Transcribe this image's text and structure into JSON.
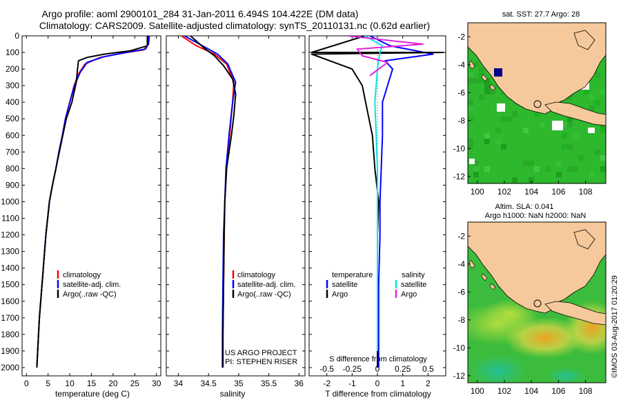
{
  "header": {
    "title_line1": "Argo profile: aoml 2900101_284 31-Jan-2011 6.494S 104.422E (DM data)",
    "title_line2": "Climatology: CARS2009. Satellite-adjusted climatology: synTS_20110131.nc (0.62d earlier)"
  },
  "credit": {
    "project": "US ARGO PROJECT",
    "pi": "PI: STEPHEN RISER",
    "stamp": "©IMOS 03-Aug-2017 01:20:29"
  },
  "colors": {
    "climatology": "#ff0000",
    "satellite": "#0000ff",
    "argo": "#000000",
    "sal_satellite": "#00e5e5",
    "sal_argo": "#e020e0",
    "land": "#f5c99b",
    "ocean": "#2db82d"
  },
  "chart_data": [
    {
      "id": "temperature",
      "type": "line",
      "xlabel": "temperature (deg C)",
      "ylabel": "",
      "xlim": [
        -1,
        31
      ],
      "ylim": [
        0,
        2050
      ],
      "yreversed": true,
      "xticks": [
        "0",
        "5",
        "10",
        "15",
        "20",
        "25",
        "30"
      ],
      "xtick_values": [
        0,
        5,
        10,
        15,
        20,
        25,
        30
      ],
      "yticks": [
        "0",
        "100",
        "200",
        "300",
        "400",
        "500",
        "600",
        "700",
        "800",
        "900",
        "1000",
        "1100",
        "1200",
        "1300",
        "1400",
        "1500",
        "1600",
        "1700",
        "1800",
        "1900",
        "2000"
      ],
      "ytick_values": [
        0,
        100,
        200,
        300,
        400,
        500,
        600,
        700,
        800,
        900,
        1000,
        1100,
        1200,
        1300,
        1400,
        1500,
        1600,
        1700,
        1800,
        1900,
        2000
      ],
      "legend": [
        "climatology",
        "satellite-adj. clim.",
        "Argo(..raw -QC)"
      ],
      "series": [
        {
          "name": "climatology",
          "color": "#ff0000",
          "x": [
            28.4,
            28.2,
            27,
            22,
            17,
            13.5,
            12,
            11,
            10,
            9,
            8.3,
            7.5,
            6.8,
            6,
            5.3,
            4.5,
            3.6,
            3,
            2.6,
            2.4
          ],
          "y": [
            0,
            50,
            85,
            105,
            130,
            170,
            230,
            300,
            400,
            500,
            600,
            700,
            800,
            900,
            1000,
            1200,
            1500,
            1700,
            1900,
            2000
          ]
        },
        {
          "name": "satellite-adj. clim.",
          "color": "#0000ff",
          "x": [
            28.2,
            28.1,
            27.5,
            23,
            18,
            14,
            12.4,
            11.1,
            10,
            9,
            8.3,
            7.5,
            6.8,
            6,
            5.3,
            4.5,
            3.6,
            3,
            2.6,
            2.4
          ],
          "y": [
            0,
            50,
            80,
            100,
            125,
            160,
            220,
            300,
            400,
            500,
            600,
            700,
            800,
            900,
            1000,
            1200,
            1500,
            1700,
            1900,
            2000
          ]
        },
        {
          "name": "Argo(..raw -QC)",
          "color": "#000000",
          "x": [
            27.9,
            27.9,
            24,
            18,
            14,
            12,
            11.8,
            11.5,
            10.5,
            9.2,
            8.4,
            7.6,
            6.8,
            6,
            5.3,
            4.5,
            3.6,
            3,
            2.6,
            2.4
          ],
          "y": [
            0,
            60,
            90,
            110,
            130,
            150,
            200,
            280,
            400,
            500,
            600,
            700,
            800,
            900,
            1000,
            1200,
            1500,
            1700,
            1900,
            2000
          ]
        }
      ]
    },
    {
      "id": "salinity",
      "type": "line",
      "xlabel": "salinity",
      "ylabel": "",
      "xlim": [
        33.8,
        36.1
      ],
      "ylim": [
        0,
        2050
      ],
      "yreversed": true,
      "xticks": [
        "34",
        "34.5",
        "35",
        "35.5",
        "36"
      ],
      "xtick_values": [
        34,
        34.5,
        35,
        35.5,
        36
      ],
      "legend": [
        "climatology",
        "satellite-adj. clim.",
        "Argo(..raw -QC)"
      ],
      "series": [
        {
          "name": "climatology",
          "color": "#ff0000",
          "x": [
            34.05,
            34.3,
            34.6,
            34.8,
            34.92,
            34.9,
            34.85,
            34.8,
            34.77,
            34.76,
            34.75,
            34.74,
            34.74
          ],
          "y": [
            0,
            60,
            110,
            170,
            280,
            400,
            600,
            800,
            1000,
            1200,
            1500,
            1800,
            2000
          ]
        },
        {
          "name": "satellite-adj. clim.",
          "color": "#0000ff",
          "x": [
            34.1,
            34.4,
            34.65,
            34.82,
            34.95,
            34.9,
            34.84,
            34.79,
            34.77,
            34.75,
            34.74,
            34.73,
            34.73
          ],
          "y": [
            0,
            60,
            110,
            170,
            280,
            400,
            600,
            800,
            1000,
            1200,
            1500,
            1800,
            2000
          ]
        },
        {
          "name": "Argo(..raw -QC)",
          "color": "#000000",
          "x": [
            34.2,
            34.45,
            34.6,
            34.75,
            34.9,
            34.95,
            34.92,
            34.88,
            34.8,
            34.77,
            34.76,
            34.75,
            34.74,
            34.74
          ],
          "y": [
            0,
            80,
            120,
            180,
            260,
            350,
            480,
            600,
            800,
            1000,
            1200,
            1500,
            1800,
            2000
          ]
        }
      ]
    },
    {
      "id": "difference",
      "type": "line",
      "xlabel": "T difference from climatology",
      "xlabel_top": "S difference from climatology",
      "xlim": [
        -2.7,
        2.7
      ],
      "ylim": [
        0,
        2050
      ],
      "yreversed": true,
      "xticks": [
        "-2",
        "-1",
        "0",
        "1",
        "2"
      ],
      "xtick_values": [
        -2,
        -1,
        0,
        1,
        2
      ],
      "sticks": [
        "-0.5",
        "-0.25",
        "0",
        "0.25",
        "0.5"
      ],
      "stick_values": [
        -2,
        -1,
        0,
        1,
        2
      ],
      "legend_t_title": "temperature",
      "legend_s_title": "salinity",
      "legend_t": [
        "satellite",
        "Argo"
      ],
      "legend_s": [
        "satellite",
        "Argo"
      ],
      "series": [
        {
          "name": "T satellite",
          "color": "#0000ff",
          "x": [
            -0.3,
            0.5,
            2.2,
            0.3,
            0.6,
            0.2,
            0.2,
            0.15,
            0.1,
            0.1,
            0.05,
            0.05,
            0.05
          ],
          "y": [
            0,
            60,
            110,
            150,
            200,
            400,
            600,
            800,
            1000,
            1200,
            1500,
            1800,
            2000
          ]
        },
        {
          "name": "T Argo",
          "color": "#000000",
          "x": [
            -0.5,
            -2.6,
            2.6,
            -2.6,
            -1,
            -0.6,
            -0.4,
            -0.2,
            -0.1,
            0.05,
            0,
            0,
            0
          ],
          "y": [
            0,
            100,
            100,
            110,
            200,
            300,
            450,
            600,
            800,
            1000,
            1200,
            1500,
            2000
          ]
        },
        {
          "name": "S satellite",
          "color": "#00e5e5",
          "x": [
            -0.5,
            0.2,
            0.1,
            0,
            -0.1,
            -0.05,
            0,
            0,
            0,
            0,
            0
          ],
          "y": [
            0,
            60,
            100,
            200,
            400,
            600,
            800,
            1000,
            1200,
            1500,
            1900
          ]
        },
        {
          "name": "S Argo",
          "color": "#e020e0",
          "x": [
            -1.2,
            1.8,
            -0.8,
            -0.6,
            0.4,
            -0.3
          ],
          "y": [
            0,
            50,
            80,
            120,
            160,
            240
          ]
        }
      ]
    },
    {
      "id": "sst_map",
      "type": "heatmap",
      "title": "sat. SST: 27.7 Argo: 28",
      "xlim": [
        99.3,
        109.5
      ],
      "ylim": [
        -12.5,
        -1
      ],
      "xticks": [
        "100",
        "102",
        "104",
        "106",
        "108"
      ],
      "xtick_values": [
        100,
        102,
        104,
        106,
        108
      ],
      "yticks": [
        "-2",
        "-4",
        "-6",
        "-8",
        "-10",
        "-12"
      ],
      "ytick_values": [
        -2,
        -4,
        -6,
        -8,
        -10,
        -12
      ],
      "argo_position": {
        "lon": 104.42,
        "lat": -6.49
      }
    },
    {
      "id": "sla_map",
      "type": "heatmap",
      "title_line1": "Altim. SLA: 0.041",
      "title_line2": "Argo h1000: NaN h2000: NaN",
      "xlim": [
        99.3,
        109.5
      ],
      "ylim": [
        -12.5,
        -1
      ],
      "xticks": [
        "100",
        "102",
        "104",
        "106",
        "108"
      ],
      "xtick_values": [
        100,
        102,
        104,
        106,
        108
      ],
      "yticks": [
        "-2",
        "-4",
        "-6",
        "-8",
        "-10",
        "-12"
      ],
      "ytick_values": [
        -2,
        -4,
        -6,
        -8,
        -10,
        -12
      ],
      "argo_position": {
        "lon": 104.42,
        "lat": -6.49
      }
    }
  ]
}
